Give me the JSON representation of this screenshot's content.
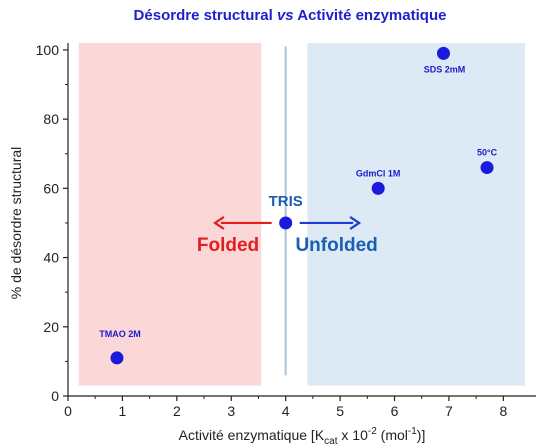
{
  "chart_data": {
    "type": "scatter",
    "title_parts": [
      {
        "text": "Désordre structural ",
        "italic": false
      },
      {
        "text": "vs",
        "italic": true
      },
      {
        "text": " Activité enzymatique",
        "italic": false
      }
    ],
    "xlabel": {
      "main": "Activité enzymatique [K",
      "sub": "cat",
      "mid": " x 10",
      "sup": "-2",
      "after": " (mol",
      "sup2": "-1",
      "end": ")]"
    },
    "ylabel": "% de désordre structural",
    "xlim": [
      0,
      8.6
    ],
    "ylim": [
      0,
      102
    ],
    "xticks": [
      0,
      1,
      2,
      3,
      4,
      5,
      6,
      7,
      8
    ],
    "yticks": [
      0,
      20,
      40,
      60,
      80,
      100
    ],
    "grid": false,
    "points": [
      {
        "label": "TMAO 2M",
        "x": 0.9,
        "y": 11
      },
      {
        "label": "TRIS",
        "x": 4.0,
        "y": 50
      },
      {
        "label": "GdmCl 1M",
        "x": 5.7,
        "y": 60
      },
      {
        "label": "SDS 2mM",
        "x": 6.9,
        "y": 99
      },
      {
        "label": "50°C",
        "x": 7.7,
        "y": 66
      }
    ],
    "regions": [
      {
        "label": "Folded",
        "x_from": 0.2,
        "x_to": 3.55,
        "y_from": 3,
        "y_to": 102,
        "color": "#fcd7d7",
        "text_color": "#e02020"
      },
      {
        "label": "Unfolded",
        "x_from": 4.4,
        "x_to": 8.4,
        "y_from": 3,
        "y_to": 102,
        "color": "#dde9f5",
        "text_color": "#1a5fb0"
      }
    ],
    "colors": {
      "marker": "#1a1adc",
      "title": "#1f1fcc",
      "center_label": "#1a5fb0",
      "divider": "#a9c4dc",
      "arrow_left": "#e02020",
      "arrow_right": "#1a3fcc"
    }
  }
}
